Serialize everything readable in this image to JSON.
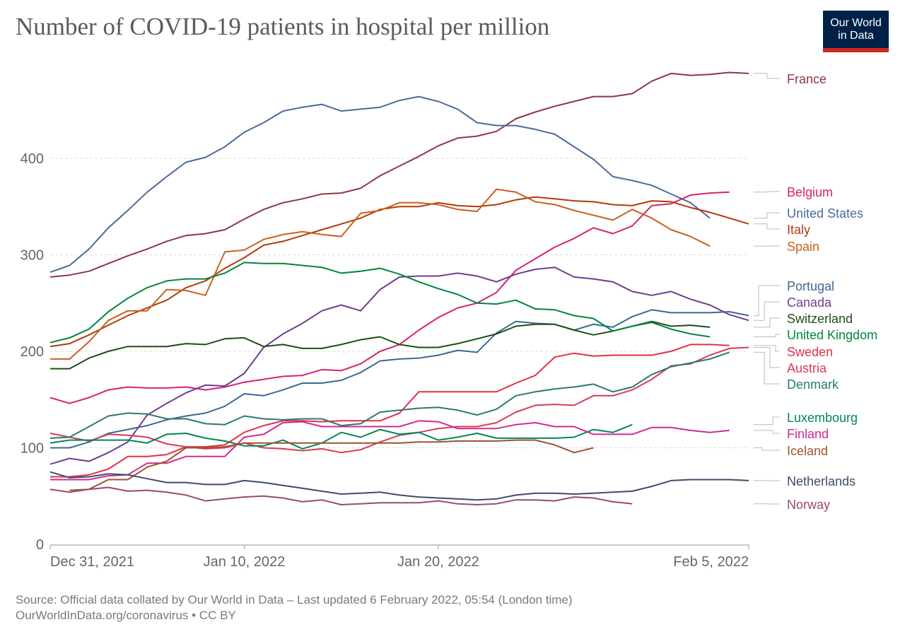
{
  "title": "Number of COVID-19 patients in hospital per million",
  "logo": {
    "line1": "Our World",
    "line2": "in Data",
    "bg": "#002147",
    "accent": "#ce261e"
  },
  "footer": {
    "source": "Source: Official data collated by Our World in Data – Last updated 6 February 2022, 05:54 (London time)",
    "credit": "OurWorldInData.org/coronavirus • CC BY"
  },
  "chart_data": {
    "type": "line",
    "title": "Number of COVID-19 patients in hospital per million",
    "xlabel": "",
    "ylabel": "",
    "ylim": [
      0,
      490
    ],
    "grid": "horizontal dashed",
    "legend": "right (line-end labels)",
    "x_ticks": [
      "Dec 31, 2021",
      "Jan 10, 2022",
      "Jan 20, 2022",
      "Feb 5, 2022"
    ],
    "y_ticks": [
      "0",
      "100",
      "200",
      "300",
      "400"
    ],
    "dates": [
      "2021-12-31",
      "2022-01-01",
      "2022-01-02",
      "2022-01-03",
      "2022-01-04",
      "2022-01-05",
      "2022-01-06",
      "2022-01-07",
      "2022-01-08",
      "2022-01-09",
      "2022-01-10",
      "2022-01-11",
      "2022-01-12",
      "2022-01-13",
      "2022-01-14",
      "2022-01-15",
      "2022-01-16",
      "2022-01-17",
      "2022-01-18",
      "2022-01-19",
      "2022-01-20",
      "2022-01-21",
      "2022-01-22",
      "2022-01-23",
      "2022-01-24",
      "2022-01-25",
      "2022-01-26",
      "2022-01-27",
      "2022-01-28",
      "2022-01-29",
      "2022-01-30",
      "2022-01-31",
      "2022-02-01",
      "2022-02-02",
      "2022-02-03",
      "2022-02-04",
      "2022-02-05"
    ],
    "series": [
      {
        "name": "France",
        "color": "#8a3a3f",
        "values": [
          277,
          279,
          283,
          291,
          299,
          306,
          314,
          320,
          322,
          326,
          337,
          347,
          354,
          358,
          363,
          364,
          369,
          382,
          392,
          402,
          413,
          421,
          423,
          428,
          441,
          448,
          454,
          459,
          464,
          464,
          467,
          480,
          488,
          486,
          487,
          489,
          488
        ]
      },
      {
        "name": "Belgium",
        "color": "#d8226c",
        "values": [
          152,
          146,
          152,
          160,
          163,
          162,
          162,
          163,
          160,
          163,
          168,
          171,
          174,
          175,
          181,
          180,
          187,
          200,
          207,
          222,
          235,
          245,
          250,
          261,
          284,
          296,
          308,
          317,
          328,
          322,
          330,
          351,
          353,
          362,
          364,
          365,
          null
        ]
      },
      {
        "name": "United States",
        "color": "#4c6a9c",
        "values": [
          282,
          289,
          306,
          328,
          346,
          365,
          381,
          396,
          401,
          412,
          427,
          437,
          449,
          453,
          456,
          449,
          451,
          453,
          460,
          464,
          459,
          451,
          437,
          434,
          434,
          430,
          425,
          412,
          399,
          381,
          377,
          372,
          363,
          354,
          338,
          null,
          null
        ]
      },
      {
        "name": "Italy",
        "color": "#b33a0c",
        "values": [
          205,
          208,
          217,
          227,
          237,
          245,
          253,
          266,
          273,
          286,
          297,
          310,
          314,
          320,
          326,
          332,
          338,
          347,
          350,
          350,
          354,
          351,
          350,
          352,
          357,
          360,
          358,
          356,
          355,
          352,
          351,
          356,
          355,
          349,
          344,
          338,
          332
        ]
      },
      {
        "name": "Spain",
        "color": "#c5621f",
        "values": [
          192,
          192,
          210,
          232,
          242,
          242,
          264,
          263,
          258,
          303,
          305,
          316,
          321,
          324,
          321,
          319,
          343,
          346,
          354,
          354,
          352,
          347,
          345,
          368,
          365,
          355,
          352,
          346,
          341,
          336,
          347,
          338,
          326,
          319,
          309,
          null,
          null
        ]
      },
      {
        "name": "Portugal",
        "color": "#3a6a94",
        "values": [
          100,
          100,
          106,
          115,
          119,
          123,
          129,
          133,
          136,
          143,
          156,
          154,
          160,
          167,
          167,
          170,
          178,
          190,
          192,
          193,
          196,
          201,
          199,
          219,
          231,
          229,
          228,
          222,
          228,
          225,
          236,
          243,
          240,
          240,
          240,
          241,
          237
        ]
      },
      {
        "name": "Canada",
        "color": "#6d3e91",
        "values": [
          83,
          89,
          86,
          95,
          106,
          134,
          146,
          157,
          165,
          164,
          177,
          204,
          218,
          229,
          242,
          248,
          242,
          264,
          277,
          278,
          278,
          281,
          278,
          272,
          280,
          285,
          287,
          277,
          275,
          272,
          262,
          258,
          262,
          254,
          248,
          238,
          232
        ]
      },
      {
        "name": "Switzerland",
        "color": "#1f4e16",
        "values": [
          182,
          182,
          193,
          200,
          205,
          205,
          205,
          208,
          207,
          213,
          214,
          205,
          207,
          203,
          203,
          207,
          212,
          215,
          207,
          204,
          204,
          208,
          213,
          218,
          226,
          228,
          228,
          222,
          217,
          221,
          226,
          231,
          226,
          227,
          225,
          null,
          null
        ]
      },
      {
        "name": "United Kingdom",
        "color": "#00873e",
        "values": [
          209,
          214,
          223,
          241,
          255,
          266,
          273,
          275,
          275,
          281,
          292,
          291,
          291,
          289,
          287,
          281,
          283,
          286,
          280,
          272,
          265,
          259,
          250,
          249,
          253,
          244,
          243,
          237,
          234,
          221,
          226,
          230,
          223,
          218,
          215,
          null,
          null
        ]
      },
      {
        "name": "Sweden",
        "color": "#e1304a",
        "values": [
          70,
          70,
          72,
          78,
          91,
          91,
          93,
          101,
          101,
          103,
          116,
          123,
          128,
          128,
          127,
          128,
          128,
          128,
          136,
          158,
          158,
          158,
          158,
          158,
          167,
          175,
          194,
          198,
          195,
          196,
          196,
          196,
          200,
          207,
          207,
          206,
          null
        ]
      },
      {
        "name": "Austria",
        "color": "#d93b55",
        "values": [
          115,
          111,
          107,
          114,
          113,
          111,
          104,
          101,
          99,
          100,
          105,
          100,
          99,
          97,
          99,
          95,
          98,
          106,
          113,
          116,
          120,
          122,
          122,
          126,
          137,
          144,
          145,
          144,
          154,
          154,
          160,
          171,
          185,
          187,
          196,
          203,
          204
        ]
      },
      {
        "name": "Denmark",
        "color": "#2c7a6e",
        "values": [
          110,
          111,
          122,
          133,
          136,
          135,
          130,
          130,
          125,
          124,
          133,
          130,
          129,
          130,
          130,
          123,
          125,
          137,
          139,
          141,
          142,
          139,
          134,
          140,
          154,
          158,
          161,
          163,
          166,
          158,
          163,
          176,
          184,
          188,
          192,
          199,
          null
        ]
      },
      {
        "name": "Luxembourg",
        "color": "#00875a",
        "values": [
          105,
          108,
          108,
          108,
          108,
          105,
          114,
          115,
          110,
          107,
          102,
          102,
          108,
          99,
          105,
          116,
          111,
          119,
          114,
          116,
          108,
          111,
          115,
          110,
          110,
          110,
          110,
          111,
          119,
          116,
          124,
          null,
          null,
          null,
          null,
          null,
          null
        ]
      },
      {
        "name": "Finland",
        "color": "#cf2a95",
        "values": [
          67,
          67,
          67,
          71,
          72,
          84,
          84,
          91,
          91,
          91,
          111,
          114,
          126,
          127,
          122,
          122,
          122,
          122,
          122,
          128,
          127,
          120,
          120,
          120,
          124,
          126,
          122,
          122,
          114,
          114,
          114,
          121,
          121,
          118,
          116,
          118,
          null
        ]
      },
      {
        "name": "Iceland",
        "color": "#a0522d",
        "values": [
          null,
          56,
          57,
          67,
          67,
          80,
          86,
          100,
          100,
          101,
          105,
          105,
          105,
          105,
          105,
          105,
          105,
          105,
          105,
          106,
          106,
          107,
          107,
          107,
          108,
          108,
          103,
          95,
          100,
          null,
          null,
          null,
          null,
          null,
          null,
          null,
          null
        ]
      },
      {
        "name": "Netherlands",
        "color": "#3f4b6a",
        "values": [
          75,
          69,
          70,
          73,
          72,
          68,
          64,
          64,
          62,
          62,
          66,
          64,
          61,
          58,
          55,
          52,
          53,
          54,
          51,
          49,
          48,
          47,
          46,
          47,
          51,
          53,
          53,
          52,
          53,
          54,
          55,
          60,
          66,
          67,
          67,
          67,
          66
        ]
      },
      {
        "name": "Norway",
        "color": "#9a4a6e",
        "values": [
          57,
          54,
          57,
          59,
          55,
          56,
          54,
          51,
          45,
          47,
          49,
          50,
          48,
          44,
          46,
          41,
          42,
          43,
          43,
          43,
          45,
          42,
          41,
          42,
          46,
          46,
          45,
          49,
          48,
          44,
          42,
          null,
          null,
          null,
          null,
          null,
          null
        ]
      }
    ]
  }
}
